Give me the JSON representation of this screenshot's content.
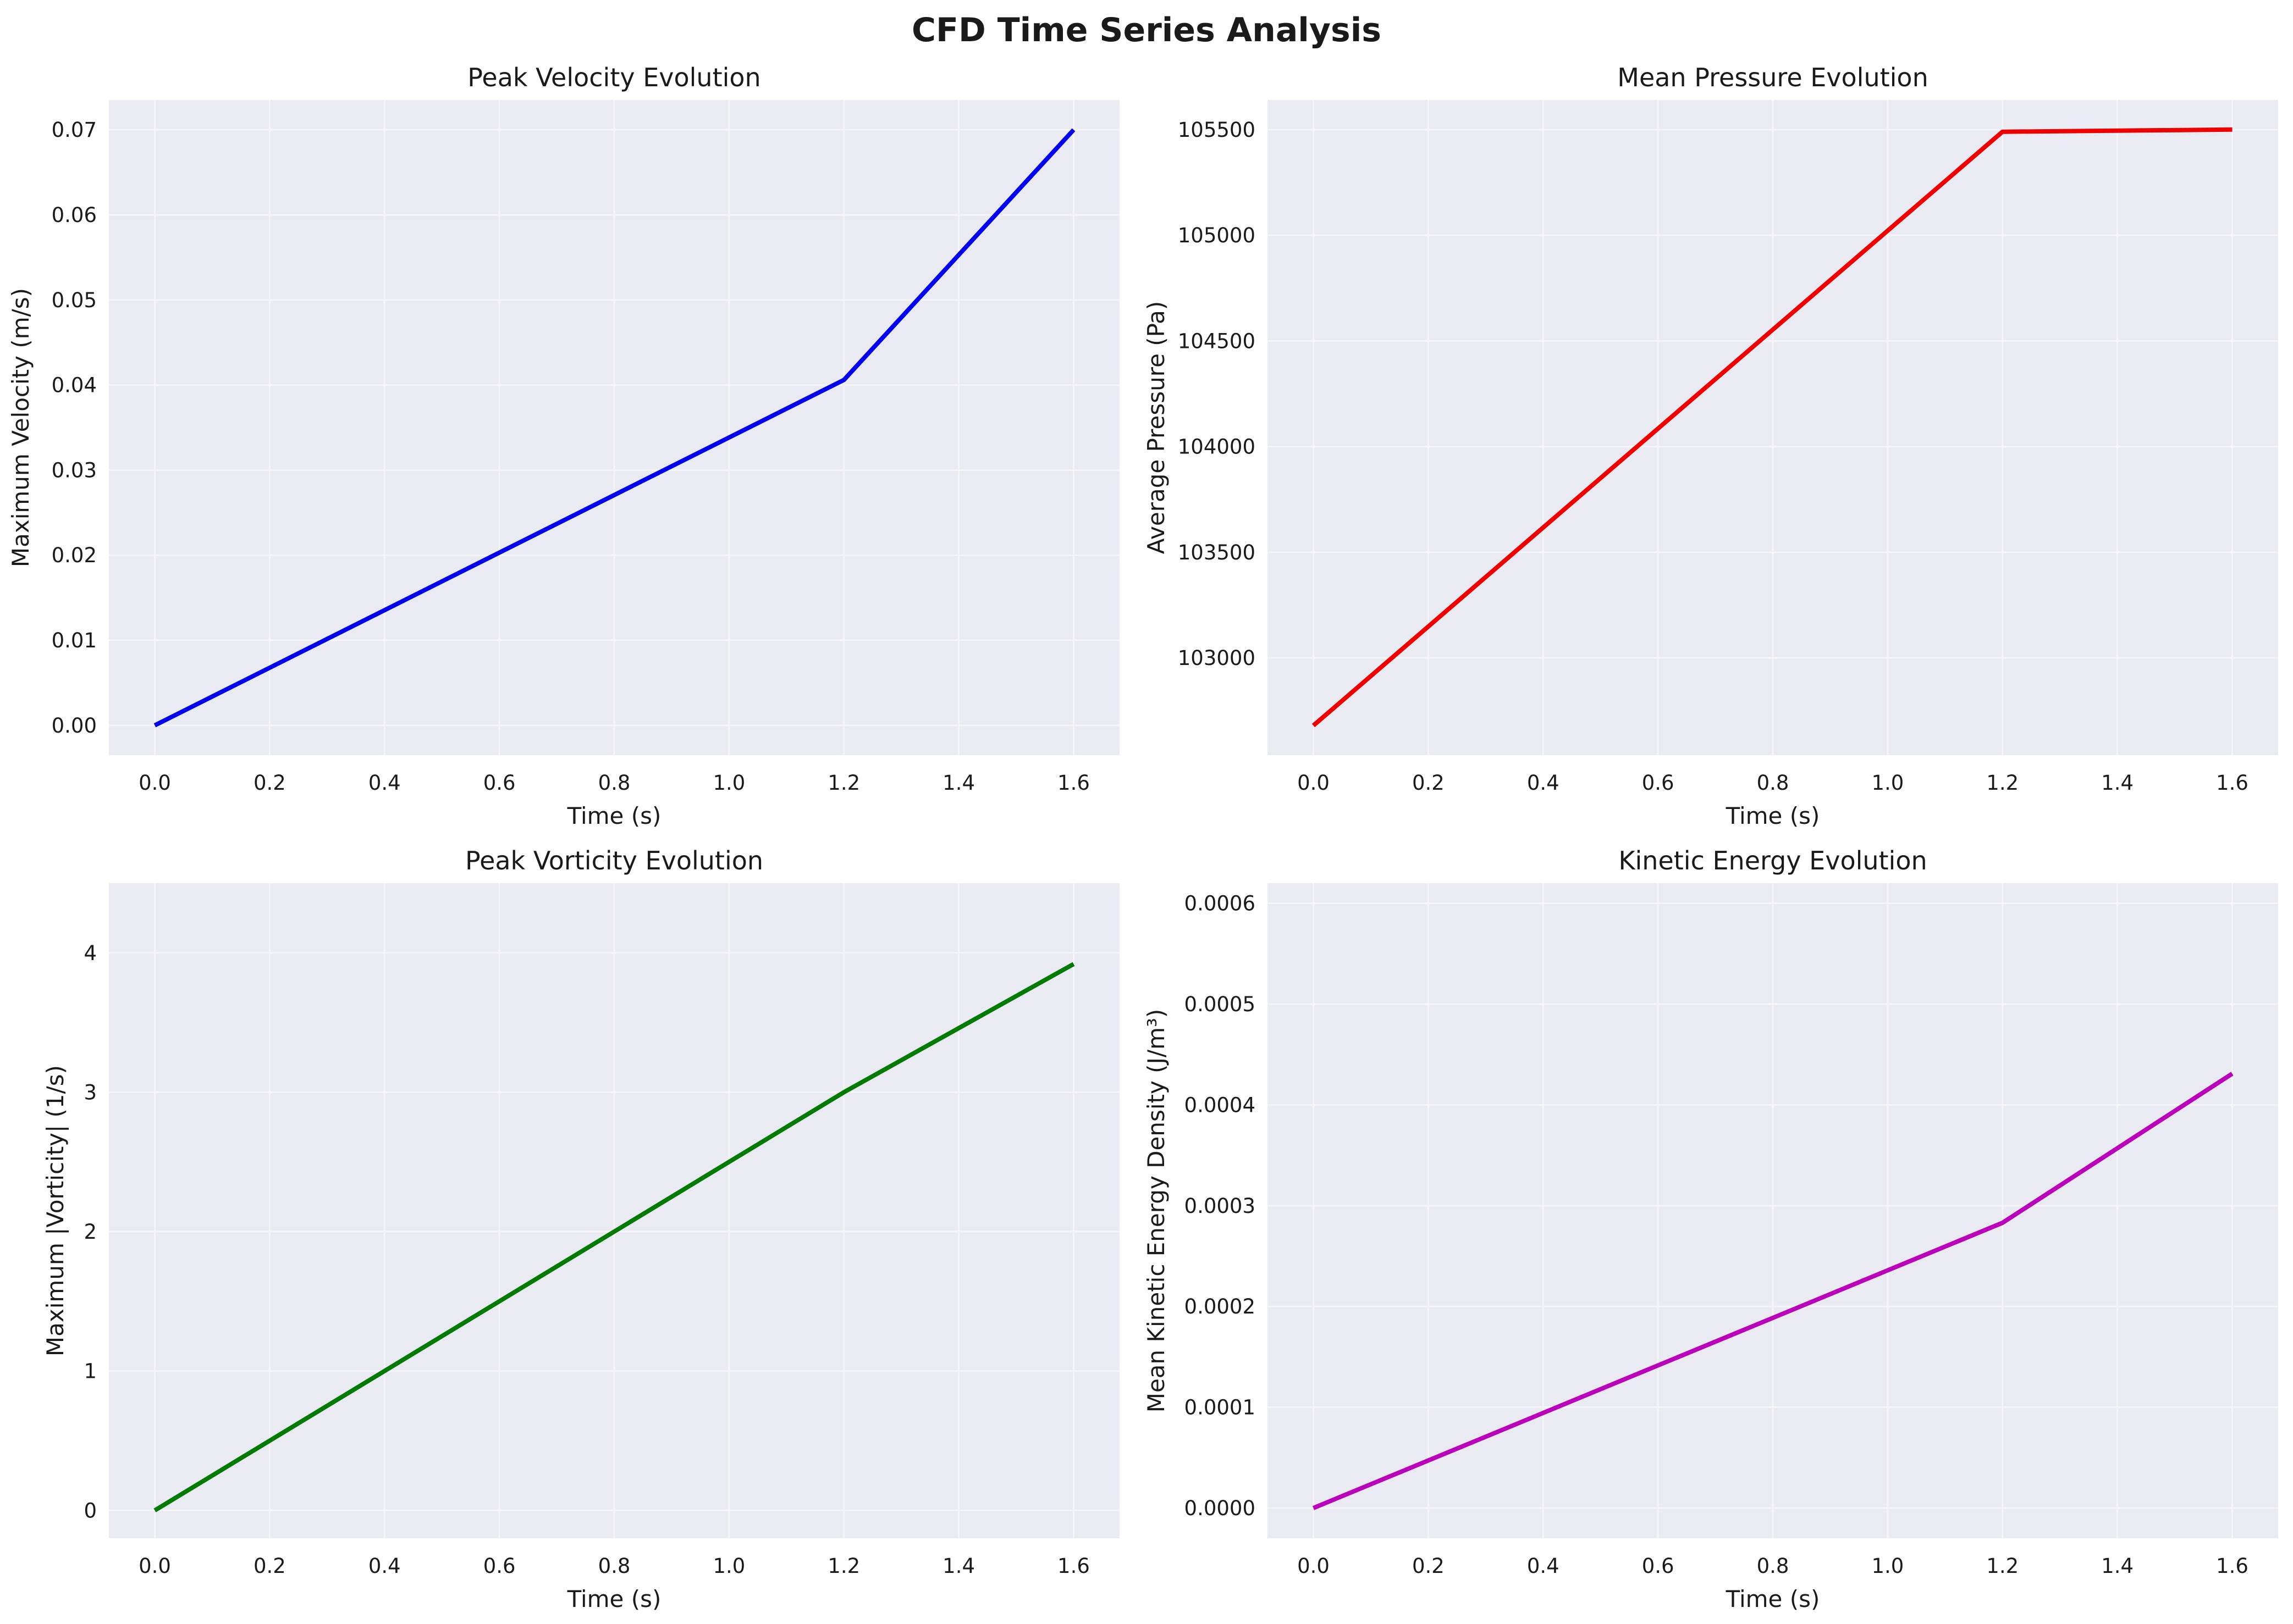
{
  "figure": {
    "title": "CFD Time Series Analysis"
  },
  "chart_data": [
    {
      "type": "line",
      "title": "Peak Velocity Evolution",
      "xlabel": "Time (s)",
      "ylabel": "Maximum Velocity (m/s)",
      "xlim": [
        -0.08,
        1.68
      ],
      "ylim": [
        -0.0035,
        0.0735
      ],
      "xticks": [
        0.0,
        0.2,
        0.4,
        0.6,
        0.8,
        1.0,
        1.2,
        1.4,
        1.6
      ],
      "xtick_labels": [
        "0.0",
        "0.2",
        "0.4",
        "0.6",
        "0.8",
        "1.0",
        "1.2",
        "1.4",
        "1.6"
      ],
      "yticks": [
        0.0,
        0.01,
        0.02,
        0.03,
        0.04,
        0.05,
        0.06,
        0.07
      ],
      "ytick_labels": [
        "0.00",
        "0.01",
        "0.02",
        "0.03",
        "0.04",
        "0.05",
        "0.06",
        "0.07"
      ],
      "grid": true,
      "color": "#0000ee",
      "x": [
        0.0,
        1.2,
        1.6
      ],
      "y": [
        0.0,
        0.0406,
        0.07
      ]
    },
    {
      "type": "line",
      "title": "Mean Pressure Evolution",
      "xlabel": "Time (s)",
      "ylabel": "Average Pressure (Pa)",
      "xlim": [
        -0.08,
        1.68
      ],
      "ylim": [
        102540,
        105640
      ],
      "xticks": [
        0.0,
        0.2,
        0.4,
        0.6,
        0.8,
        1.0,
        1.2,
        1.4,
        1.6
      ],
      "xtick_labels": [
        "0.0",
        "0.2",
        "0.4",
        "0.6",
        "0.8",
        "1.0",
        "1.2",
        "1.4",
        "1.6"
      ],
      "yticks": [
        103000,
        103500,
        104000,
        104500,
        105000,
        105500
      ],
      "ytick_labels": [
        "103000",
        "103500",
        "104000",
        "104500",
        "105000",
        "105500"
      ],
      "grid": true,
      "color": "#ee0000",
      "x": [
        0.0,
        1.2,
        1.6
      ],
      "y": [
        102680,
        105490,
        105500
      ]
    },
    {
      "type": "line",
      "title": "Peak Vorticity Evolution",
      "xlabel": "Time (s)",
      "ylabel": "Maximum |Vorticity| (1/s)",
      "xlim": [
        -0.08,
        1.68
      ],
      "ylim": [
        -0.2,
        4.5
      ],
      "xticks": [
        0.0,
        0.2,
        0.4,
        0.6,
        0.8,
        1.0,
        1.2,
        1.4,
        1.6
      ],
      "xtick_labels": [
        "0.0",
        "0.2",
        "0.4",
        "0.6",
        "0.8",
        "1.0",
        "1.2",
        "1.4",
        "1.6"
      ],
      "yticks": [
        0,
        1,
        2,
        3,
        4
      ],
      "ytick_labels": [
        "0",
        "1",
        "2",
        "3",
        "4"
      ],
      "grid": true,
      "color": "#007a00",
      "x": [
        0.0,
        1.2,
        1.6
      ],
      "y": [
        0.0,
        3.0,
        3.92
      ]
    },
    {
      "type": "line",
      "title": "Kinetic Energy Evolution",
      "xlabel": "Time (s)",
      "ylabel": "Mean Kinetic Energy Density (J/m³)",
      "xlim": [
        -0.08,
        1.68
      ],
      "ylim": [
        -3e-05,
        0.00062
      ],
      "xticks": [
        0.0,
        0.2,
        0.4,
        0.6,
        0.8,
        1.0,
        1.2,
        1.4,
        1.6
      ],
      "xtick_labels": [
        "0.0",
        "0.2",
        "0.4",
        "0.6",
        "0.8",
        "1.0",
        "1.2",
        "1.4",
        "1.6"
      ],
      "yticks": [
        0.0,
        0.0001,
        0.0002,
        0.0003,
        0.0004,
        0.0005,
        0.0006
      ],
      "ytick_labels": [
        "0.0000",
        "0.0001",
        "0.0002",
        "0.0003",
        "0.0004",
        "0.0005",
        "0.0006"
      ],
      "grid": true,
      "color": "#bb00bb",
      "x": [
        0.0,
        1.2,
        1.6
      ],
      "y": [
        0.0,
        0.000283,
        0.000431
      ]
    }
  ]
}
